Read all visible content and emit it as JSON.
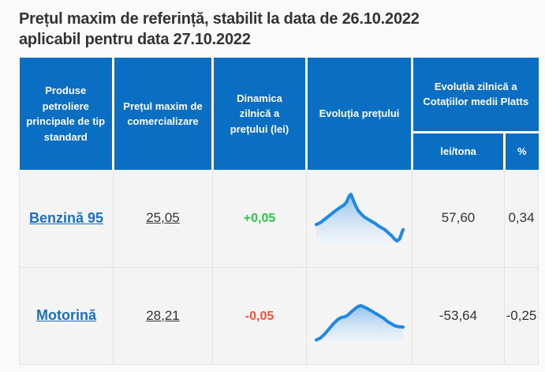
{
  "theme": {
    "page_bg": "#fafafa",
    "header_blue": "#0a6fc2",
    "cell_bg": "#f4f4f5",
    "body_border": "#e3e3e7",
    "text_dark": "#333333",
    "link_blue": "#1b6fc0",
    "positive_green": "#28c846",
    "negative_red": "#f4503a",
    "chart_line": "#1e88e5",
    "chart_fill_top": "#7fb7e8",
    "chart_fill_bottom": "#f0f7fd"
  },
  "title": {
    "text1": "Prețul maxim de referință, stabilit la data de ",
    "date1": "26.10.2022",
    "text2": "aplicabil pentru data ",
    "date2": "27.10.2022"
  },
  "table": {
    "header": {
      "col_products": "Produse petroliere principale de tip standard",
      "col_max_price": "Prețul maxim de comercializare",
      "col_dynamics": "Dinamica zilnică a prețului (lei)",
      "col_evolution": "Evoluția prețului",
      "col_platts_group": "Evoluția zilnică a Cotațiilor medii Platts",
      "col_platts_lei": "lei/tona",
      "col_platts_pct": "%"
    },
    "rows": [
      {
        "product": "Benzină 95",
        "max_price": "25,05",
        "dynamics": "+0,05",
        "trend": "up",
        "platts_lei": "57,60",
        "platts_pct": "0,34"
      },
      {
        "product": "Motorină",
        "max_price": "28,21",
        "dynamics": "-0,05",
        "trend": "down",
        "platts_lei": "-53,64",
        "platts_pct": "-0,25"
      }
    ]
  },
  "chart_data": [
    {
      "type": "area",
      "name": "benzina-95-price-evolution",
      "x": [
        0,
        5,
        11,
        17,
        23,
        28,
        32,
        35,
        38,
        40,
        42,
        45,
        48,
        52,
        56,
        60,
        64,
        68,
        71,
        75,
        79,
        83,
        87,
        90,
        93,
        96,
        100
      ],
      "y": [
        38,
        42,
        50,
        58,
        66,
        72,
        76,
        82,
        94,
        97,
        88,
        76,
        66,
        58,
        52,
        48,
        44,
        40,
        36,
        32,
        28,
        22,
        16,
        10,
        6,
        10,
        28
      ]
    },
    {
      "type": "area",
      "name": "motorina-price-evolution",
      "x": [
        0,
        5,
        10,
        15,
        20,
        25,
        29,
        33,
        36,
        40,
        44,
        48,
        51,
        54,
        58,
        62,
        66,
        70,
        74,
        78,
        82,
        86,
        90,
        94,
        100
      ],
      "y": [
        4,
        8,
        16,
        26,
        36,
        44,
        48,
        49,
        52,
        58,
        64,
        69,
        71,
        69,
        66,
        62,
        58,
        54,
        50,
        46,
        40,
        36,
        32,
        30,
        29
      ]
    }
  ]
}
